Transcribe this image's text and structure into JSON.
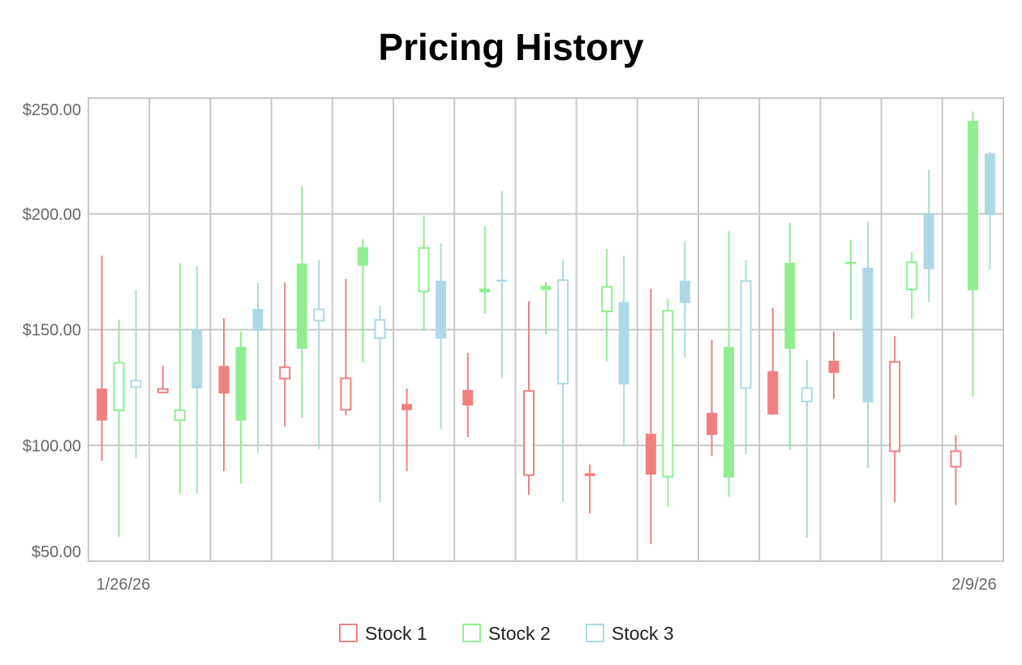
{
  "chart_data": {
    "type": "candlestick",
    "title": "Pricing History",
    "xlabel": "",
    "ylabel": "",
    "ylim": [
      50,
      250
    ],
    "y_ticks": [
      "$50.00",
      "$100.00",
      "$150.00",
      "$200.00",
      "$250.00"
    ],
    "y_tick_values": [
      50,
      100,
      150,
      200,
      250
    ],
    "x_tick_labels": [
      "1/26/26",
      "2/9/26"
    ],
    "days": 15,
    "grid": true,
    "legend_position": "bottom",
    "series": [
      {
        "name": "Stock 1",
        "color": "#f08080",
        "ohlc": [
          [
            124.4,
            181.9,
            93.4,
            110.9
          ],
          [
            122.9,
            134.4,
            122.5,
            124.4
          ],
          [
            134.1,
            155.0,
            88.9,
            122.6
          ],
          [
            128.9,
            170.4,
            108.1,
            133.8
          ],
          [
            115.4,
            171.9,
            113.0,
            129.0
          ],
          [
            117.7,
            124.6,
            88.9,
            115.4
          ],
          [
            123.8,
            140.0,
            103.6,
            117.4
          ],
          [
            87.2,
            162.3,
            78.6,
            123.5
          ],
          [
            87.8,
            91.8,
            70.6,
            86.9
          ],
          [
            104.9,
            167.6,
            57.4,
            87.6
          ],
          [
            113.9,
            145.6,
            95.5,
            104.7
          ],
          [
            131.9,
            159.5,
            113.2,
            113.5
          ],
          [
            136.4,
            149.2,
            120.0,
            131.5
          ],
          [
            97.5,
            147.3,
            75.4,
            136.1
          ],
          [
            90.8,
            104.5,
            74.3,
            97.5
          ]
        ]
      },
      {
        "name": "Stock 2",
        "color": "#90ee90",
        "ohlc": [
          [
            115.2,
            154.3,
            60.6,
            135.7
          ],
          [
            110.9,
            178.7,
            79.2,
            115.2
          ],
          [
            142.4,
            149.2,
            83.5,
            110.9
          ],
          [
            178.4,
            211.9,
            112.0,
            141.9
          ],
          [
            185.4,
            189.0,
            135.7,
            177.8
          ],
          [
            166.5,
            199.3,
            149.7,
            185.3
          ],
          [
            167.6,
            194.8,
            156.9,
            166.3
          ],
          [
            168.7,
            170.6,
            147.9,
            167.4
          ],
          [
            157.9,
            184.8,
            136.4,
            168.5
          ],
          [
            86.5,
            163.3,
            73.4,
            158.1
          ],
          [
            142.4,
            192.5,
            77.9,
            86.3
          ],
          [
            178.7,
            196.1,
            98.1,
            141.9
          ],
          [
            179.1,
            188.8,
            154.0,
            178.5
          ],
          [
            167.4,
            183.5,
            154.7,
            179.1
          ],
          [
            240.0,
            244.2,
            121.0,
            167.2
          ]
        ]
      },
      {
        "name": "Stock 3",
        "color": "#add8e6",
        "ohlc": [
          [
            125.2,
            167.2,
            94.6,
            128.0
          ],
          [
            150.1,
            177.5,
            79.2,
            124.8
          ],
          [
            158.8,
            170.1,
            96.8,
            149.7
          ],
          [
            153.9,
            180.0,
            98.5,
            158.8
          ],
          [
            146.3,
            160.4,
            75.4,
            154.2
          ],
          [
            171.0,
            187.3,
            107.2,
            146.3
          ],
          [
            171.4,
            209.8,
            128.9,
            170.9
          ],
          [
            126.7,
            180.0,
            75.6,
            171.4
          ],
          [
            161.8,
            182.0,
            100.4,
            126.5
          ],
          [
            171.0,
            188.4,
            138.0,
            161.7
          ],
          [
            124.8,
            180.0,
            96.3,
            171.0
          ],
          [
            119.0,
            137.0,
            60.0,
            124.8
          ],
          [
            176.6,
            196.7,
            90.1,
            118.8
          ],
          [
            199.7,
            219.2,
            161.9,
            176.3
          ],
          [
            225.9,
            226.9,
            175.9,
            199.7
          ]
        ]
      }
    ]
  }
}
